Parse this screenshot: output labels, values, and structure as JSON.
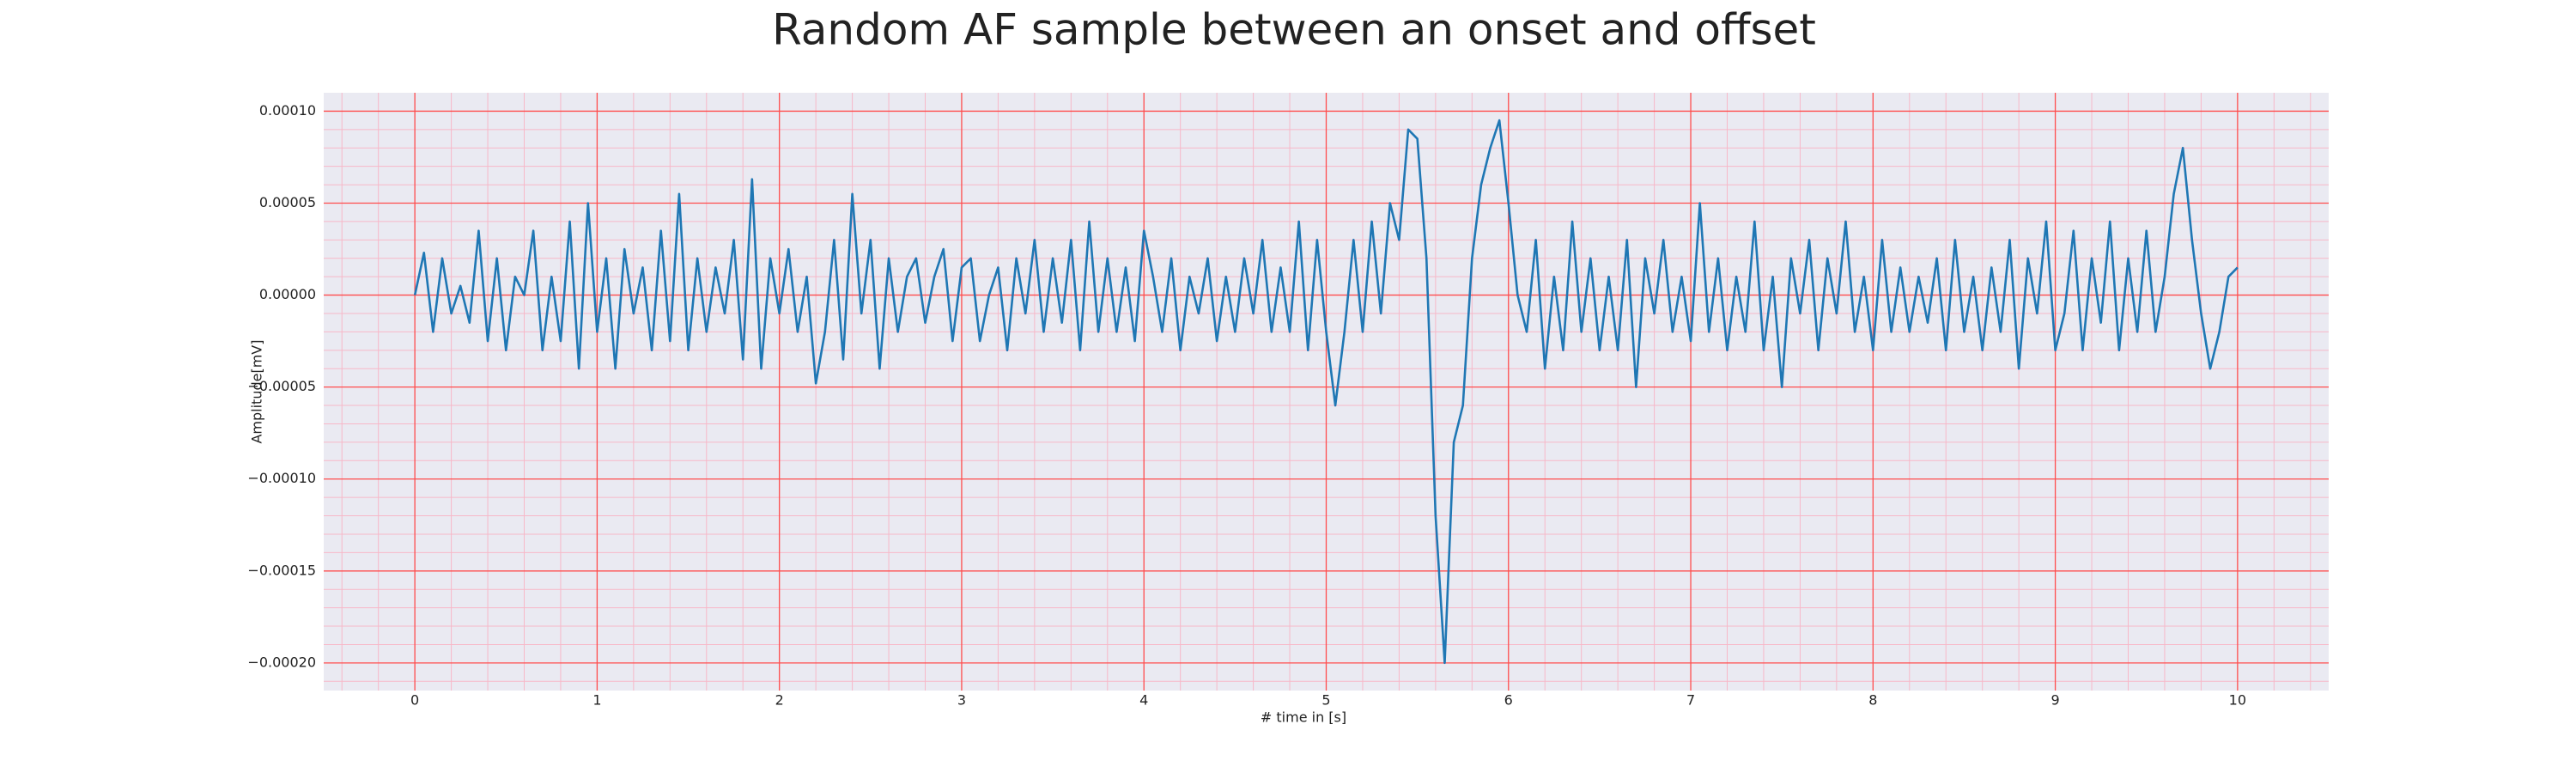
{
  "chart_data": {
    "type": "line",
    "title": "Random AF sample between an onset and offset",
    "xlabel": "# time in [s]",
    "ylabel": "Amplitude[mV]",
    "xlim": [
      -0.5,
      10.5
    ],
    "ylim": [
      -0.000215,
      0.00011
    ],
    "xticks": [
      0,
      1,
      2,
      3,
      4,
      5,
      6,
      7,
      8,
      9,
      10
    ],
    "yticks": [
      {
        "value": 0.0001,
        "label": "0.00010"
      },
      {
        "value": 5e-05,
        "label": "0.00005"
      },
      {
        "value": 0,
        "label": "0.00000"
      },
      {
        "value": -5e-05,
        "label": "−0.00005"
      },
      {
        "value": -0.0001,
        "label": "−0.00010"
      },
      {
        "value": -0.00015,
        "label": "−0.00015"
      },
      {
        "value": -0.0002,
        "label": "−0.00020"
      }
    ],
    "xticks_minor": [
      -0.4,
      -0.2,
      0.2,
      0.4,
      0.6,
      0.8,
      1.2,
      1.4,
      1.6,
      1.8,
      2.2,
      2.4,
      2.6,
      2.8,
      3.2,
      3.4,
      3.6,
      3.8,
      4.2,
      4.4,
      4.6,
      4.8,
      5.2,
      5.4,
      5.6,
      5.8,
      6.2,
      6.4,
      6.6,
      6.8,
      7.2,
      7.4,
      7.6,
      7.8,
      8.2,
      8.4,
      8.6,
      8.8,
      9.2,
      9.4,
      9.6,
      9.8,
      10.2,
      10.4
    ],
    "yticks_minor": [
      -0.00021,
      -0.00019,
      -0.00018,
      -0.00017,
      -0.00016,
      -0.00014,
      -0.00013,
      -0.00012,
      -0.00011,
      -9e-05,
      -8e-05,
      -7e-05,
      -6e-05,
      -4e-05,
      -3e-05,
      -2e-05,
      -1e-05,
      1e-05,
      2e-05,
      3e-05,
      4e-05,
      6e-05,
      7e-05,
      8e-05,
      9e-05
    ],
    "grid": true,
    "grid_color": "#ff4d4d",
    "grid_minor_color": "#f7b8c8",
    "background": "#eaeaf2",
    "color": "#1f77b4",
    "x": [
      0,
      0.05,
      0.1,
      0.15,
      0.2,
      0.25,
      0.3,
      0.35,
      0.4,
      0.45,
      0.5,
      0.55,
      0.6,
      0.65,
      0.7,
      0.75,
      0.8,
      0.85,
      0.9,
      0.95,
      1,
      1.05,
      1.1,
      1.15,
      1.2,
      1.25,
      1.3,
      1.35,
      1.4,
      1.45,
      1.5,
      1.55,
      1.6,
      1.65,
      1.7,
      1.75,
      1.8,
      1.85,
      1.9,
      1.95,
      2,
      2.05,
      2.1,
      2.15,
      2.2,
      2.25,
      2.3,
      2.35,
      2.4,
      2.45,
      2.5,
      2.55,
      2.6,
      2.65,
      2.7,
      2.75,
      2.8,
      2.85,
      2.9,
      2.95,
      3,
      3.05,
      3.1,
      3.15,
      3.2,
      3.25,
      3.3,
      3.35,
      3.4,
      3.45,
      3.5,
      3.55,
      3.6,
      3.65,
      3.7,
      3.75,
      3.8,
      3.85,
      3.9,
      3.95,
      4,
      4.05,
      4.1,
      4.15,
      4.2,
      4.25,
      4.3,
      4.35,
      4.4,
      4.45,
      4.5,
      4.55,
      4.6,
      4.65,
      4.7,
      4.75,
      4.8,
      4.85,
      4.9,
      4.95,
      5,
      5.05,
      5.1,
      5.15,
      5.2,
      5.25,
      5.3,
      5.35,
      5.4,
      5.45,
      5.5,
      5.55,
      5.6,
      5.65,
      5.7,
      5.75,
      5.8,
      5.85,
      5.9,
      5.95,
      6,
      6.05,
      6.1,
      6.15,
      6.2,
      6.25,
      6.3,
      6.35,
      6.4,
      6.45,
      6.5,
      6.55,
      6.6,
      6.65,
      6.7,
      6.75,
      6.8,
      6.85,
      6.9,
      6.95,
      7,
      7.05,
      7.1,
      7.15,
      7.2,
      7.25,
      7.3,
      7.35,
      7.4,
      7.45,
      7.5,
      7.55,
      7.6,
      7.65,
      7.7,
      7.75,
      7.8,
      7.85,
      7.9,
      7.95,
      8,
      8.05,
      8.1,
      8.15,
      8.2,
      8.25,
      8.3,
      8.35,
      8.4,
      8.45,
      8.5,
      8.55,
      8.6,
      8.65,
      8.7,
      8.75,
      8.8,
      8.85,
      8.9,
      8.95,
      9,
      9.05,
      9.1,
      9.15,
      9.2,
      9.25,
      9.3,
      9.35,
      9.4,
      9.45,
      9.5,
      9.55,
      9.6,
      9.65,
      9.7,
      9.75,
      9.8,
      9.85,
      9.9,
      9.95,
      10
    ],
    "values": [
      0,
      2.3e-05,
      -2e-05,
      2e-05,
      -1e-05,
      5e-06,
      -1.5e-05,
      3.5e-05,
      -2.5e-05,
      2e-05,
      -3e-05,
      1e-05,
      0,
      3.5e-05,
      -3e-05,
      1e-05,
      -2.5e-05,
      4e-05,
      -4e-05,
      5e-05,
      -2e-05,
      2e-05,
      -4e-05,
      2.5e-05,
      -1e-05,
      1.5e-05,
      -3e-05,
      3.5e-05,
      -2.5e-05,
      5.5e-05,
      -3e-05,
      2e-05,
      -2e-05,
      1.5e-05,
      -1e-05,
      3e-05,
      -3.5e-05,
      6.3e-05,
      -4e-05,
      2e-05,
      -1e-05,
      2.5e-05,
      -2e-05,
      1e-05,
      -4.8e-05,
      -2e-05,
      3e-05,
      -3.5e-05,
      5.5e-05,
      -1e-05,
      3e-05,
      -4e-05,
      2e-05,
      -2e-05,
      1e-05,
      2e-05,
      -1.5e-05,
      1e-05,
      2.5e-05,
      -2.5e-05,
      1.5e-05,
      2e-05,
      -2.5e-05,
      0,
      1.5e-05,
      -3e-05,
      2e-05,
      -1e-05,
      3e-05,
      -2e-05,
      2e-05,
      -1.5e-05,
      3e-05,
      -3e-05,
      4e-05,
      -2e-05,
      2e-05,
      -2e-05,
      1.5e-05,
      -2.5e-05,
      3.5e-05,
      1e-05,
      -2e-05,
      2e-05,
      -3e-05,
      1e-05,
      -1e-05,
      2e-05,
      -2.5e-05,
      1e-05,
      -2e-05,
      2e-05,
      -1e-05,
      3e-05,
      -2e-05,
      1.5e-05,
      -2e-05,
      4e-05,
      -3e-05,
      3e-05,
      -2e-05,
      -6e-05,
      -2e-05,
      3e-05,
      -2e-05,
      4e-05,
      -1e-05,
      5e-05,
      3e-05,
      9e-05,
      8.5e-05,
      2e-05,
      -0.00012,
      -0.0002,
      -8e-05,
      -6e-05,
      2e-05,
      6e-05,
      8e-05,
      9.5e-05,
      5e-05,
      0,
      -2e-05,
      3e-05,
      -4e-05,
      1e-05,
      -3e-05,
      4e-05,
      -2e-05,
      2e-05,
      -3e-05,
      1e-05,
      -3e-05,
      3e-05,
      -5e-05,
      2e-05,
      -1e-05,
      3e-05,
      -2e-05,
      1e-05,
      -2.5e-05,
      5e-05,
      -2e-05,
      2e-05,
      -3e-05,
      1e-05,
      -2e-05,
      4e-05,
      -3e-05,
      1e-05,
      -5e-05,
      2e-05,
      -1e-05,
      3e-05,
      -3e-05,
      2e-05,
      -1e-05,
      4e-05,
      -2e-05,
      1e-05,
      -3e-05,
      3e-05,
      -2e-05,
      1.5e-05,
      -2e-05,
      1e-05,
      -1.5e-05,
      2e-05,
      -3e-05,
      3e-05,
      -2e-05,
      1e-05,
      -3e-05,
      1.5e-05,
      -2e-05,
      3e-05,
      -4e-05,
      2e-05,
      -1e-05,
      4e-05,
      -3e-05,
      -1e-05,
      3.5e-05,
      -3e-05,
      2e-05,
      -1.5e-05,
      4e-05,
      -3e-05,
      2e-05,
      -2e-05,
      3.5e-05,
      -2e-05,
      1e-05,
      5.5e-05,
      8e-05,
      3e-05,
      -1e-05,
      -4e-05,
      -2e-05,
      1e-05,
      1.5e-05
    ]
  }
}
